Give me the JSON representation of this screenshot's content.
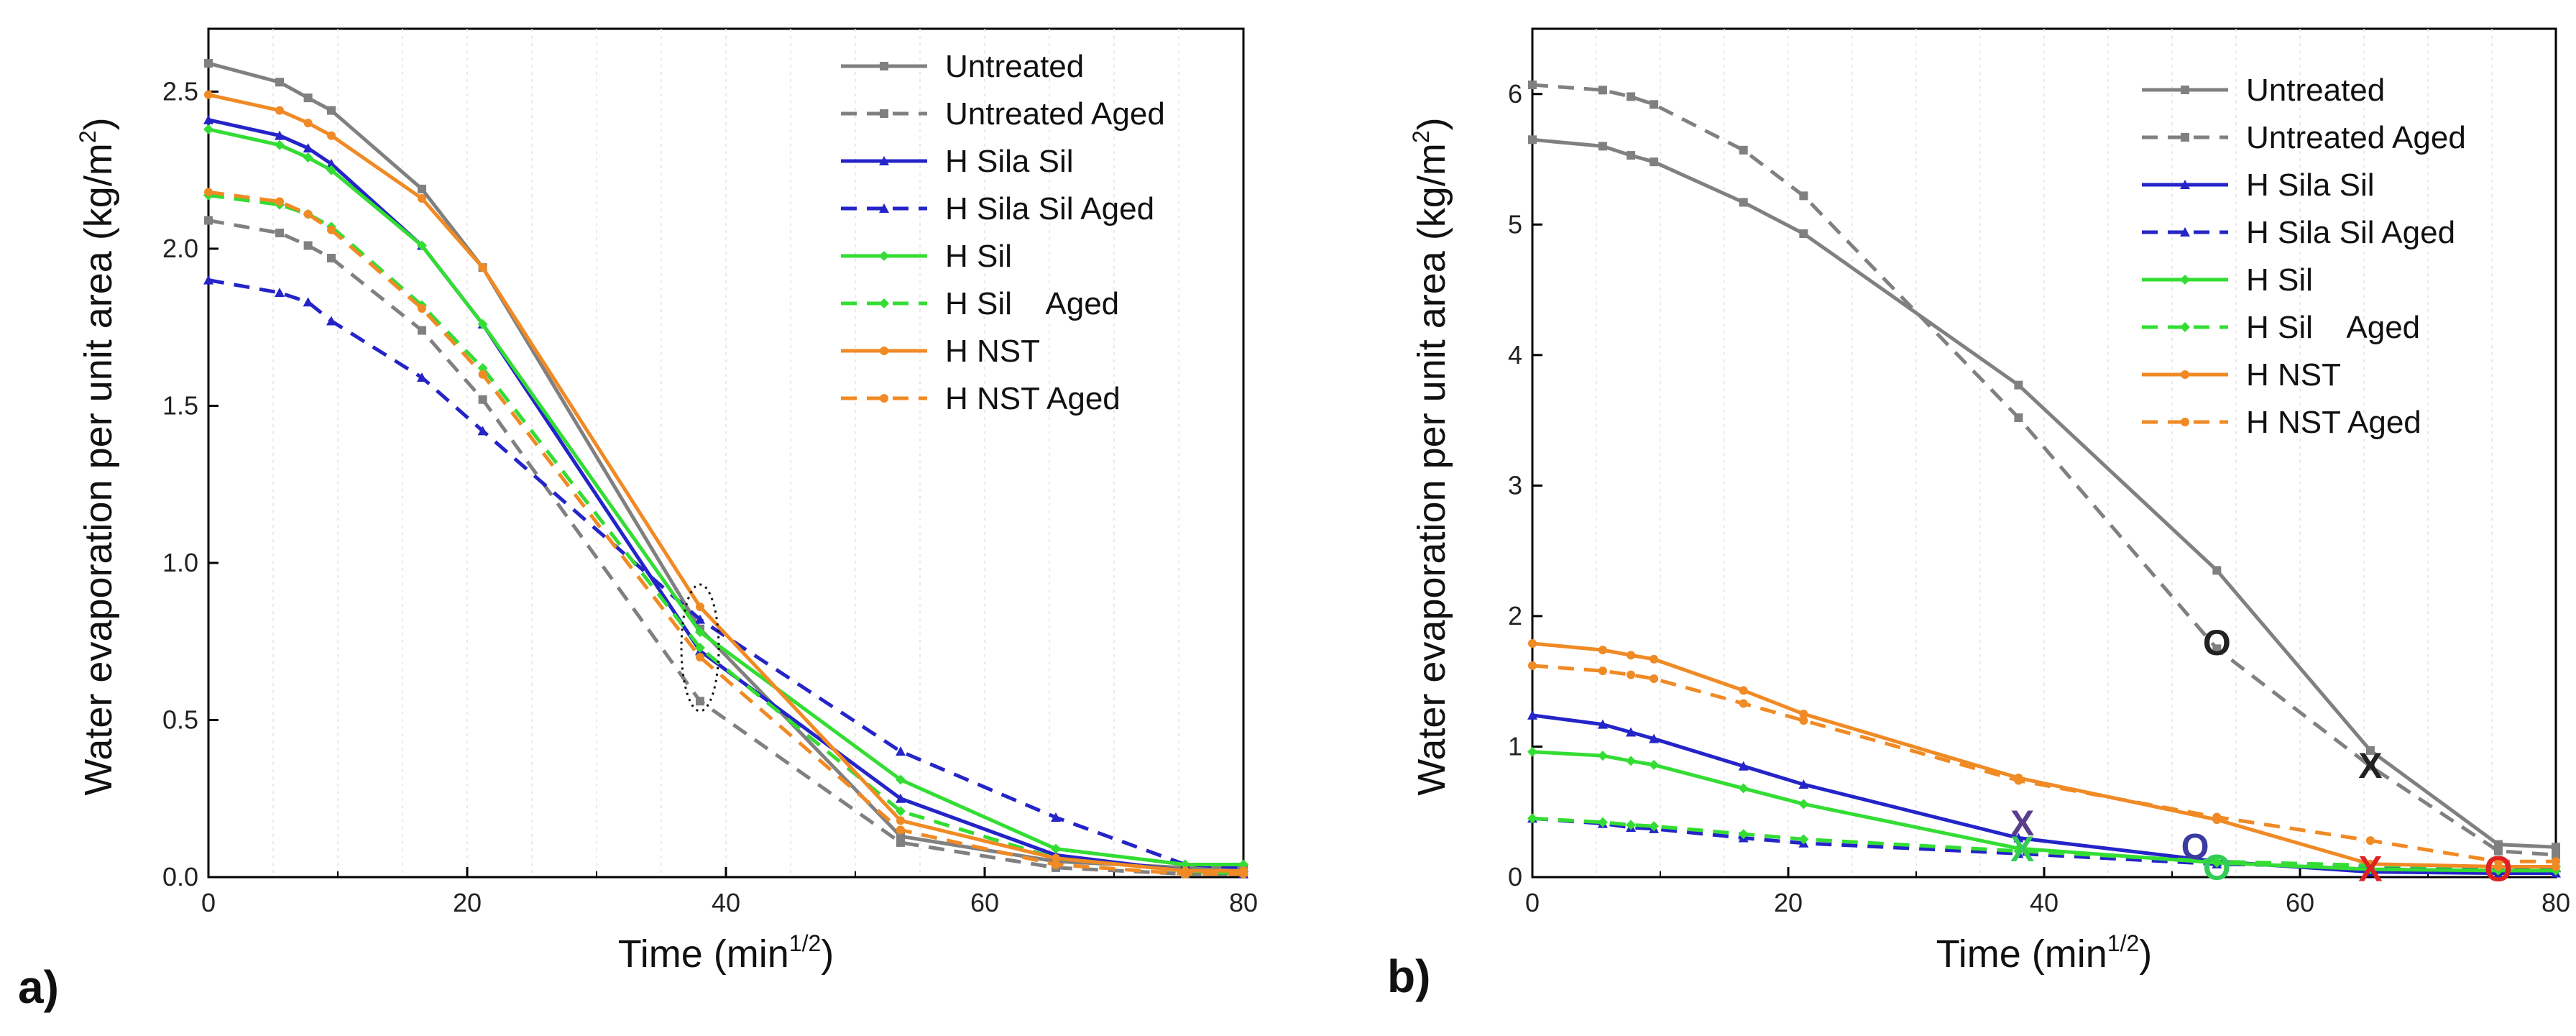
{
  "chart_data": [
    {
      "type": "line",
      "panel_label": "a)",
      "xlabel_main": "Time (min",
      "xlabel_sup": "1/2",
      "xlabel_end": ")",
      "ylabel_main": "Water evaporation per unit area (kg/m",
      "ylabel_sup": "2",
      "ylabel_end": ")",
      "xlim": [
        0,
        80
      ],
      "ylim": [
        0,
        2.7
      ],
      "xticks": [
        "0",
        "20",
        "40",
        "60",
        "80"
      ],
      "yticks": [
        "0.0",
        "0.5",
        "1.0",
        "1.5",
        "2.0",
        "2.5"
      ],
      "ytick_values": [
        0,
        0.5,
        1.0,
        1.5,
        2.0,
        2.5
      ],
      "xtick_values": [
        0,
        20,
        40,
        60,
        80
      ],
      "legend_position": "top-right",
      "annotation": "dotted ellipse near t=38",
      "series": [
        {
          "name": "Untreated",
          "color": "#808080",
          "dash": "solid",
          "marker": "square",
          "x": [
            0,
            5.5,
            7.7,
            9.5,
            16.5,
            21.2,
            38,
            53.5,
            65.5,
            75.5,
            80
          ],
          "y": [
            2.59,
            2.53,
            2.48,
            2.44,
            2.19,
            1.94,
            0.79,
            0.13,
            0.05,
            0.03,
            0.03
          ]
        },
        {
          "name": "Untreated Aged",
          "color": "#808080",
          "dash": "dash",
          "marker": "square",
          "x": [
            0,
            5.5,
            7.7,
            9.5,
            16.5,
            21.2,
            38,
            53.5,
            65.5,
            75.5,
            80
          ],
          "y": [
            2.09,
            2.05,
            2.01,
            1.97,
            1.74,
            1.52,
            0.56,
            0.11,
            0.03,
            0.01,
            0.01
          ]
        },
        {
          "name": "H Sila Sil",
          "color": "#2424c8",
          "dash": "solid",
          "marker": "triangle",
          "x": [
            0,
            5.5,
            7.7,
            9.5,
            16.5,
            21.2,
            38,
            53.5,
            65.5,
            75.5,
            80
          ],
          "y": [
            2.41,
            2.36,
            2.32,
            2.27,
            2.01,
            1.76,
            0.72,
            0.25,
            0.07,
            0.02,
            0.01
          ]
        },
        {
          "name": "H Sila Sil Aged",
          "color": "#2424c8",
          "dash": "dash",
          "marker": "triangle",
          "x": [
            0,
            5.5,
            7.7,
            9.5,
            16.5,
            21.2,
            38,
            53.5,
            65.5,
            75.5,
            80
          ],
          "y": [
            1.9,
            1.86,
            1.83,
            1.77,
            1.59,
            1.42,
            0.82,
            0.4,
            0.19,
            0.04,
            0.03
          ]
        },
        {
          "name": "H Sil",
          "color": "#33dd33",
          "dash": "solid",
          "marker": "diamond",
          "x": [
            0,
            5.5,
            7.7,
            9.5,
            16.5,
            21.2,
            38,
            53.5,
            65.5,
            75.5,
            80
          ],
          "y": [
            2.38,
            2.33,
            2.29,
            2.25,
            2.01,
            1.76,
            0.78,
            0.31,
            0.09,
            0.04,
            0.04
          ]
        },
        {
          "name": "H Sil    Aged",
          "color": "#33dd33",
          "dash": "dash",
          "marker": "diamond",
          "x": [
            0,
            5.5,
            7.7,
            9.5,
            16.5,
            21.2,
            38,
            53.5,
            65.5,
            75.5,
            80
          ],
          "y": [
            2.17,
            2.14,
            2.11,
            2.07,
            1.82,
            1.62,
            0.73,
            0.21,
            0.06,
            0.02,
            0.01
          ]
        },
        {
          "name": "H NST",
          "color": "#f08a24",
          "dash": "solid",
          "marker": "circle",
          "x": [
            0,
            5.5,
            7.7,
            9.5,
            16.5,
            21.2,
            38,
            53.5,
            65.5,
            75.5,
            80
          ],
          "y": [
            2.49,
            2.44,
            2.4,
            2.36,
            2.16,
            1.94,
            0.86,
            0.18,
            0.06,
            0.02,
            0.02
          ]
        },
        {
          "name": "H NST Aged",
          "color": "#f08a24",
          "dash": "dash",
          "marker": "circle",
          "x": [
            0,
            5.5,
            7.7,
            9.5,
            16.5,
            21.2,
            38,
            53.5,
            65.5,
            75.5,
            80
          ],
          "y": [
            2.18,
            2.15,
            2.11,
            2.06,
            1.81,
            1.6,
            0.7,
            0.15,
            0.04,
            0.01,
            0.01
          ]
        }
      ]
    },
    {
      "type": "line",
      "panel_label": "b)",
      "xlabel_main": "Time (min",
      "xlabel_sup": "1/2",
      "xlabel_end": ")",
      "ylabel_main": "Water evaporation per unit area (kg/m",
      "ylabel_sup": "2",
      "ylabel_end": ")",
      "xlim": [
        0,
        80
      ],
      "ylim": [
        0,
        6.5
      ],
      "xticks": [
        "0",
        "20",
        "40",
        "60",
        "80"
      ],
      "yticks": [
        "0",
        "1",
        "2",
        "3",
        "4",
        "5",
        "6"
      ],
      "ytick_values": [
        0,
        1,
        2,
        3,
        4,
        5,
        6
      ],
      "xtick_values": [
        0,
        20,
        40,
        60,
        80
      ],
      "legend_position": "top-right",
      "series": [
        {
          "name": "Untreated",
          "color": "#808080",
          "dash": "solid",
          "marker": "square",
          "x": [
            0,
            5.5,
            7.7,
            9.5,
            16.5,
            21.2,
            38,
            53.5,
            65.5,
            75.5,
            80
          ],
          "y": [
            5.65,
            5.6,
            5.53,
            5.48,
            5.17,
            4.93,
            3.77,
            2.35,
            0.97,
            0.25,
            0.23
          ]
        },
        {
          "name": "Untreated Aged",
          "color": "#808080",
          "dash": "dash",
          "marker": "square",
          "x": [
            0,
            5.5,
            7.7,
            9.5,
            16.5,
            21.2,
            38,
            53.5,
            65.5,
            75.5,
            80
          ],
          "y": [
            6.07,
            6.03,
            5.98,
            5.92,
            5.57,
            5.22,
            3.52,
            1.75,
            0.85,
            0.2,
            0.17
          ]
        },
        {
          "name": "H Sila Sil",
          "color": "#2424c8",
          "dash": "solid",
          "marker": "triangle",
          "x": [
            0,
            5.5,
            7.7,
            9.5,
            16.5,
            21.2,
            38,
            53.5,
            65.5,
            75.5,
            80
          ],
          "y": [
            1.24,
            1.17,
            1.11,
            1.06,
            0.85,
            0.71,
            0.3,
            0.12,
            0.04,
            0.03,
            0.03
          ]
        },
        {
          "name": "H Sila Sil Aged",
          "color": "#2424c8",
          "dash": "dash",
          "marker": "triangle",
          "x": [
            0,
            5.5,
            7.7,
            9.5,
            16.5,
            21.2,
            38,
            53.5,
            65.5,
            75.5,
            80
          ],
          "y": [
            0.45,
            0.41,
            0.38,
            0.37,
            0.3,
            0.26,
            0.18,
            0.1,
            0.08,
            0.07,
            0.07
          ]
        },
        {
          "name": "H Sil",
          "color": "#33dd33",
          "dash": "solid",
          "marker": "diamond",
          "x": [
            0,
            5.5,
            7.7,
            9.5,
            16.5,
            21.2,
            38,
            53.5,
            65.5,
            75.5,
            80
          ],
          "y": [
            0.96,
            0.93,
            0.89,
            0.86,
            0.68,
            0.56,
            0.22,
            0.11,
            0.06,
            0.05,
            0.05
          ]
        },
        {
          "name": "H Sil    Aged",
          "color": "#33dd33",
          "dash": "dash",
          "marker": "diamond",
          "x": [
            0,
            5.5,
            7.7,
            9.5,
            16.5,
            21.2,
            38,
            53.5,
            65.5,
            75.5,
            80
          ],
          "y": [
            0.45,
            0.42,
            0.4,
            0.39,
            0.33,
            0.29,
            0.2,
            0.12,
            0.09,
            0.08,
            0.08
          ]
        },
        {
          "name": "H NST",
          "color": "#f08a24",
          "dash": "solid",
          "marker": "circle",
          "x": [
            0,
            5.5,
            7.7,
            9.5,
            16.5,
            21.2,
            38,
            53.5,
            65.5,
            75.5,
            80
          ],
          "y": [
            1.79,
            1.74,
            1.7,
            1.67,
            1.43,
            1.25,
            0.76,
            0.44,
            0.1,
            0.08,
            0.08
          ]
        },
        {
          "name": "H NST Aged",
          "color": "#f08a24",
          "dash": "dash",
          "marker": "circle",
          "x": [
            0,
            5.5,
            7.7,
            9.5,
            16.5,
            21.2,
            38,
            53.5,
            65.5,
            75.5,
            80
          ],
          "y": [
            1.62,
            1.58,
            1.55,
            1.52,
            1.33,
            1.2,
            0.74,
            0.46,
            0.28,
            0.12,
            0.12
          ]
        }
      ],
      "annotations": [
        {
          "text": "O",
          "x": 53.5,
          "y": 1.8,
          "color": "#222222"
        },
        {
          "text": "X",
          "x": 65.5,
          "y": 0.86,
          "color": "#222222"
        },
        {
          "text": "X",
          "x": 38.3,
          "y": 0.42,
          "color": "#5a3d8c"
        },
        {
          "text": "X",
          "x": 38.3,
          "y": 0.22,
          "color": "#33cc55"
        },
        {
          "text": "O",
          "x": 51.8,
          "y": 0.24,
          "color": "#3a3aa0"
        },
        {
          "text": "O",
          "x": 53.5,
          "y": 0.08,
          "color": "#33cc55"
        },
        {
          "text": "X",
          "x": 65.5,
          "y": 0.07,
          "color": "#dd2222"
        },
        {
          "text": "O",
          "x": 75.5,
          "y": 0.07,
          "color": "#dd2222"
        }
      ]
    }
  ]
}
